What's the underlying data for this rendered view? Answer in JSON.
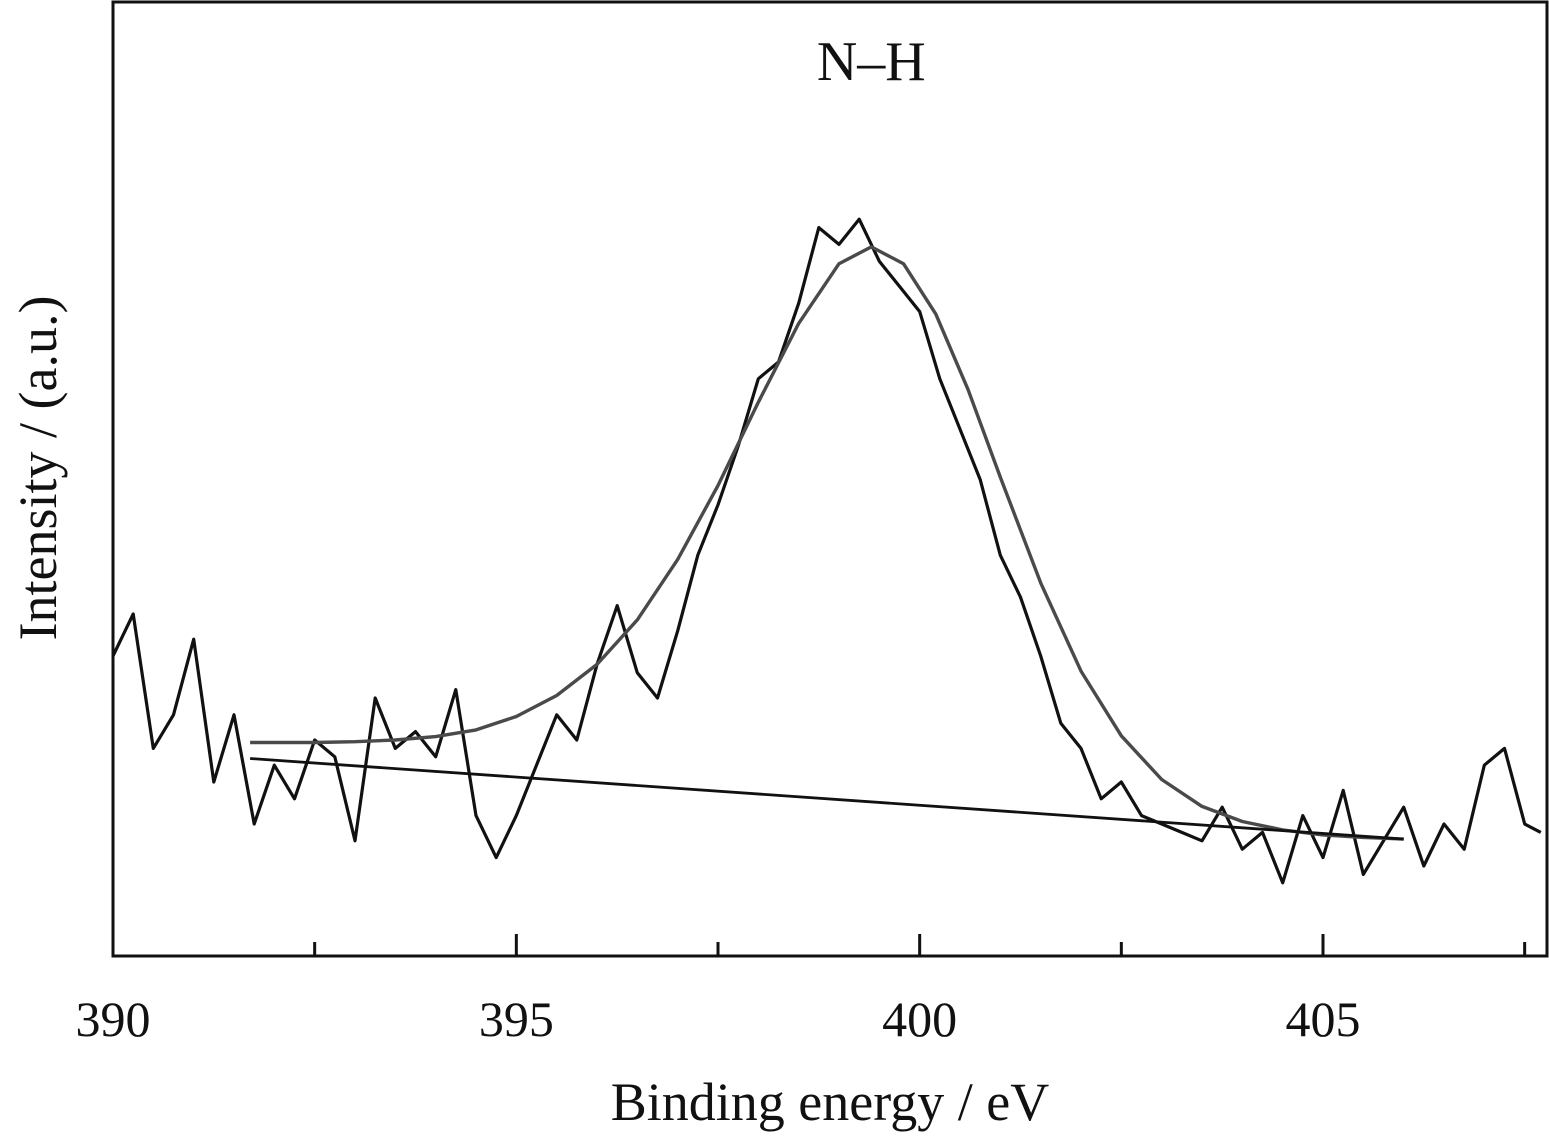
{
  "chart_data": {
    "type": "line",
    "title": "",
    "xlabel": "Binding energy / eV",
    "ylabel": "Intensity / (a.u.)",
    "xlim": [
      390,
      407.7
    ],
    "ylim": [
      0,
      100
    ],
    "y_ticks_shown": false,
    "grid": false,
    "legend": "none",
    "x_ticks_major": [
      390,
      395,
      400,
      405
    ],
    "x_tick_labels": [
      "390",
      "395",
      "400",
      "405"
    ],
    "x_ticks_minor": [
      392.5,
      397.5,
      402.5,
      407.5
    ],
    "annotations": [
      {
        "text": "N–H",
        "x": 399.4,
        "y": 94
      }
    ],
    "colors": {
      "raw": "#111111",
      "fit": "#4a4a4a",
      "baseline": "#111111",
      "frame": "#111111"
    },
    "series": [
      {
        "role": "raw",
        "x": [
          390.0,
          390.25,
          390.5,
          390.75,
          391.0,
          391.25,
          391.5,
          391.75,
          392.0,
          392.25,
          392.5,
          392.75,
          393.0,
          393.25,
          393.5,
          393.75,
          394.0,
          394.25,
          394.5,
          394.75,
          395.0,
          395.25,
          395.5,
          395.75,
          396.0,
          396.25,
          396.5,
          396.75,
          397.0,
          397.25,
          397.5,
          397.75,
          398.0,
          398.25,
          398.5,
          398.75,
          399.0,
          399.25,
          399.5,
          399.75,
          400.0,
          400.25,
          400.5,
          400.75,
          401.0,
          401.25,
          401.5,
          401.75,
          402.0,
          402.25,
          402.5,
          402.75,
          403.0,
          403.25,
          403.5,
          403.75,
          404.0,
          404.25,
          404.5,
          404.75,
          405.0,
          405.25,
          405.5,
          405.75,
          406.0,
          406.25,
          406.5,
          406.75,
          407.0,
          407.25,
          407.5,
          407.7
        ],
        "y": [
          35,
          40,
          24,
          28,
          37,
          20,
          28,
          15,
          22,
          18,
          25,
          23,
          13,
          30,
          24,
          26,
          23,
          31,
          16,
          11,
          16,
          22,
          28,
          25,
          34,
          41,
          33,
          30,
          38,
          47,
          53,
          60,
          68,
          70,
          77,
          86,
          84,
          87,
          82,
          79,
          76,
          68,
          62,
          56,
          47,
          42,
          35,
          27,
          24,
          18,
          20,
          16,
          15,
          14,
          13,
          17,
          12,
          14,
          8,
          16,
          11,
          19,
          9,
          13,
          17,
          10,
          15,
          12,
          22,
          24,
          15,
          14
        ]
      },
      {
        "role": "fit",
        "x": [
          391.7,
          392.5,
          393.0,
          393.5,
          394.0,
          394.5,
          395.0,
          395.5,
          396.0,
          396.5,
          397.0,
          397.5,
          398.0,
          398.5,
          399.0,
          399.4,
          399.8,
          400.2,
          400.6,
          401.0,
          401.5,
          402.0,
          402.5,
          403.0,
          403.5,
          404.0,
          404.5,
          405.0,
          405.5,
          406.0
        ],
        "y": [
          24.7,
          24.7,
          24.8,
          25.0,
          25.4,
          26.2,
          27.8,
          30.3,
          34.0,
          39.3,
          46.5,
          55.3,
          65.2,
          74.6,
          81.7,
          83.7,
          81.7,
          75.7,
          66.7,
          56.3,
          43.7,
          33.2,
          25.5,
          20.3,
          17.1,
          15.3,
          14.3,
          13.7,
          13.4,
          13.2
        ]
      },
      {
        "role": "baseline",
        "x": [
          391.7,
          406.0
        ],
        "y": [
          22.8,
          13.2
        ]
      }
    ]
  }
}
